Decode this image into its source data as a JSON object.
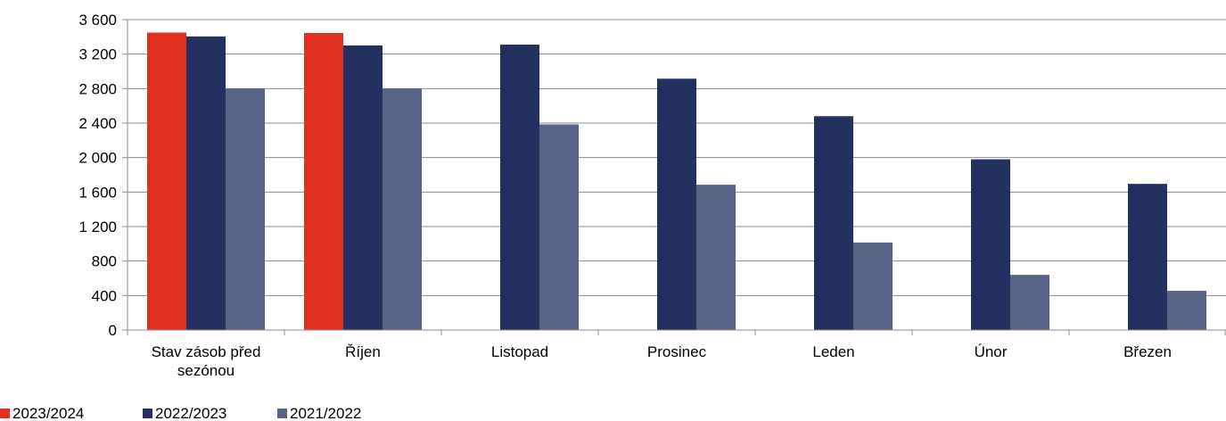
{
  "chart_data": {
    "type": "bar",
    "categories": [
      [
        "Stav zásob před",
        "sezónou"
      ],
      [
        "Říjen"
      ],
      [
        "Listopad"
      ],
      [
        "Prosinec"
      ],
      [
        "Leden"
      ],
      [
        "Únor"
      ],
      [
        "Březen"
      ]
    ],
    "series": [
      {
        "name": "2023/2024",
        "color": "#e03020",
        "values": [
          3450,
          3445,
          null,
          null,
          null,
          null,
          null
        ]
      },
      {
        "name": "2022/2023",
        "color": "#233060",
        "values": [
          3405,
          3300,
          3310,
          2915,
          2480,
          1980,
          1695
        ]
      },
      {
        "name": "2021/2022",
        "color": "#5a6487",
        "values": [
          2800,
          2800,
          2385,
          1685,
          1015,
          640,
          455
        ]
      }
    ],
    "yticks": [
      "0",
      "400",
      "800",
      "1 200",
      "1 600",
      "2 000",
      "2 400",
      "2 800",
      "3 200",
      "3 600"
    ],
    "ylim": [
      0,
      3600
    ],
    "grid": true,
    "legend_position": "bottom-left"
  }
}
